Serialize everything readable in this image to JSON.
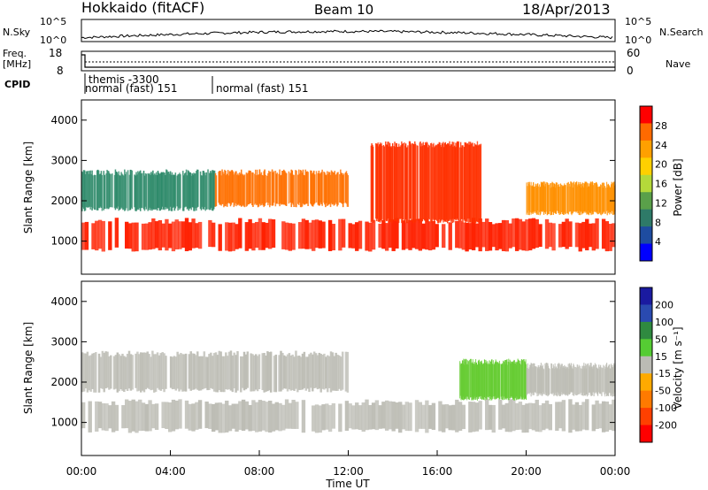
{
  "header": {
    "title": "Hokkaido (fitACF)",
    "beam": "Beam 10",
    "date": "18/Apr/2013"
  },
  "top_panels": {
    "nsky_label": "N.Sky",
    "nsky_ticks": [
      "10^5",
      "10^0"
    ],
    "nsearch_label": "N.Search",
    "freq_label": "Freq.",
    "freq_unit": "[MHz]",
    "freq_ticks": [
      "18",
      "8"
    ],
    "nave_ticks": [
      "60",
      "0"
    ],
    "nave_label": "Nave",
    "cpid_label": "CPID",
    "cpid_entries": [
      {
        "text": "themis -3300"
      },
      {
        "text": "normal (fast) 151"
      },
      {
        "text": "normal (fast) 151"
      }
    ]
  },
  "chart_data": [
    {
      "type": "heatmap",
      "name": "power",
      "ylabel": "Slant Range [km]",
      "ylim": [
        180,
        4500
      ],
      "yticks": [
        1000,
        2000,
        3000,
        4000
      ],
      "xlim": [
        0,
        24
      ],
      "colorbar": {
        "label": "Power [dB]",
        "ticks": [
          "28",
          "24",
          "20",
          "16",
          "12",
          "8",
          "4"
        ],
        "colors": [
          "#ff0000",
          "#ff6a00",
          "#ffa000",
          "#ffd000",
          "#b4d93a",
          "#5aa04a",
          "#2e7a68",
          "#1e4ca0",
          "#0000ff"
        ]
      },
      "bands": [
        {
          "from": 0,
          "to": 24,
          "low": 800,
          "high": 1500,
          "color": "#ff2000"
        },
        {
          "from": 0,
          "to": 6,
          "low": 1800,
          "high": 2700,
          "color": "#2e8a6a"
        },
        {
          "from": 6,
          "to": 12,
          "low": 1900,
          "high": 2700,
          "color": "#ff7000"
        },
        {
          "from": 13,
          "to": 18,
          "low": 1500,
          "high": 3400,
          "color": "#ff3000"
        },
        {
          "from": 20,
          "to": 24,
          "low": 1700,
          "high": 2400,
          "color": "#ff9000"
        }
      ]
    },
    {
      "type": "heatmap",
      "name": "velocity",
      "ylabel": "Slant Range [km]",
      "xlabel": "Time UT",
      "ylim": [
        180,
        4500
      ],
      "yticks": [
        1000,
        2000,
        3000,
        4000
      ],
      "xlim": [
        0,
        24
      ],
      "xticks": [
        "00:00",
        "04:00",
        "08:00",
        "12:00",
        "16:00",
        "20:00",
        "00:00"
      ],
      "colorbar": {
        "label": "Velocity [m s⁻¹]",
        "ticks": [
          "200",
          "100",
          "50",
          "15",
          "-15",
          "-50",
          "-100",
          "-200"
        ],
        "colors": [
          "#1a1aa0",
          "#2a4ab0",
          "#2f8a40",
          "#55cc33",
          "#bbbbb4",
          "#ffaa00",
          "#ff7a00",
          "#ff4000",
          "#ff0000"
        ]
      },
      "bands": [
        {
          "from": 0,
          "to": 24,
          "low": 800,
          "high": 1500,
          "color": "#bdbdb5"
        },
        {
          "from": 0,
          "to": 12,
          "low": 1800,
          "high": 2700,
          "color": "#bdbdb5"
        },
        {
          "from": 17,
          "to": 20,
          "low": 1600,
          "high": 2500,
          "color": "#66cc33"
        },
        {
          "from": 20,
          "to": 24,
          "low": 1700,
          "high": 2400,
          "color": "#bdbdb5"
        }
      ]
    }
  ]
}
